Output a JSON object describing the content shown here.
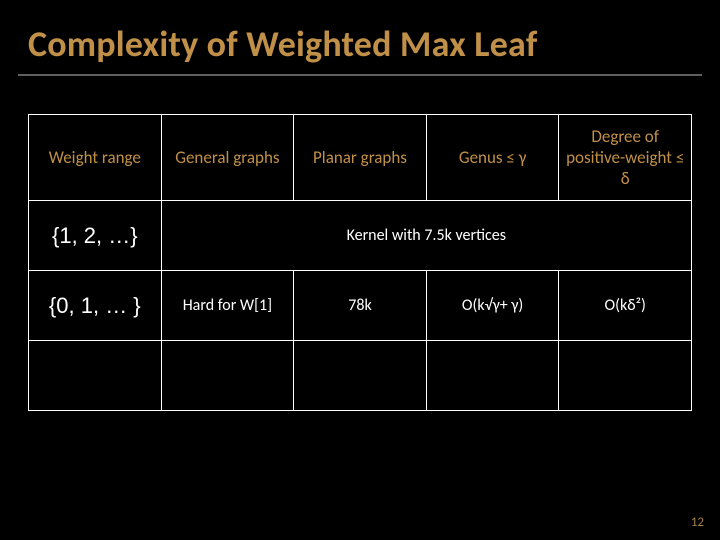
{
  "title": "Complexity of Weighted Max Leaf",
  "page_number": "12",
  "table": {
    "headers": {
      "c0": "Weight range",
      "c1": "General graphs",
      "c2": "Planar graphs",
      "c3": "Genus ≤ γ",
      "c4": "Degree of positive-weight ≤ δ"
    },
    "row1": {
      "weight": "{1, 2, …}",
      "merged": "Kernel with 7.5k vertices"
    },
    "row2": {
      "weight": "{0, 1, … }",
      "c1": "Hard for W[1]",
      "c2": "78k",
      "c3": "O(k√γ+ γ)",
      "c4": "O(kδ²)"
    }
  },
  "colors": {
    "bg": "#000000",
    "accent": "#c09048",
    "text": "#ffffff",
    "rule": "#606060"
  }
}
